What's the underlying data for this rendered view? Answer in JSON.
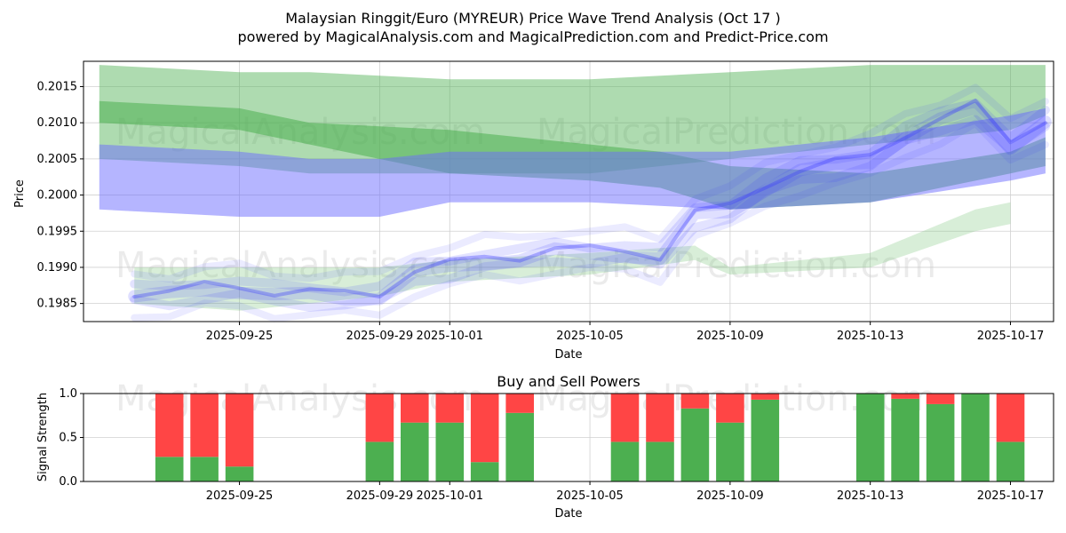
{
  "header": {
    "title": "Malaysian Ringgit/Euro (MYREUR) Price Wave Trend Analysis (Oct 17 )",
    "subtitle": "powered by MagicalAnalysis.com and MagicalPrediction.com and Predict-Price.com"
  },
  "watermarks": [
    "MagicalAnalysis.com",
    "MagicalPrediction.com"
  ],
  "chart_data": [
    {
      "type": "area",
      "name": "price-wave",
      "xlabel": "Date",
      "ylabel": "Price",
      "ylim": [
        0.19825,
        0.20185
      ],
      "xrange": [
        "2025-09-21",
        "2025-10-18"
      ],
      "x_ticks": [
        "2025-09-25",
        "2025-09-29",
        "2025-10-01",
        "2025-10-05",
        "2025-10-09",
        "2025-10-13",
        "2025-10-17"
      ],
      "y_ticks": [
        "0.1985",
        "0.1990",
        "0.1995",
        "0.2000",
        "0.2005",
        "0.2010",
        "0.2015"
      ],
      "grid": true,
      "series": [
        {
          "name": "upper-green-band",
          "color": "#4caf50",
          "x": [
            "2025-09-21",
            "2025-09-25",
            "2025-09-27",
            "2025-10-01",
            "2025-10-05",
            "2025-10-09",
            "2025-10-13",
            "2025-10-17",
            "2025-10-18"
          ],
          "upper": [
            0.2018,
            0.2017,
            0.2017,
            0.2016,
            0.2016,
            0.2017,
            0.2018,
            0.2018,
            0.2018
          ],
          "lower": [
            0.2005,
            0.2004,
            0.2003,
            0.2003,
            0.2003,
            0.2005,
            0.2007,
            0.2009,
            0.2011
          ]
        },
        {
          "name": "lower-green-band",
          "color": "#4caf50",
          "x": [
            "2025-09-21",
            "2025-09-25",
            "2025-09-27",
            "2025-10-01",
            "2025-10-05",
            "2025-10-07",
            "2025-10-09",
            "2025-10-13",
            "2025-10-17",
            "2025-10-18"
          ],
          "upper": [
            0.2013,
            0.2012,
            0.201,
            0.2009,
            0.2007,
            0.2006,
            0.2004,
            0.2003,
            0.2006,
            0.2008
          ],
          "lower": [
            0.201,
            0.2009,
            0.2007,
            0.2003,
            0.2002,
            0.2001,
            0.1998,
            0.1999,
            0.2003,
            0.2004
          ]
        },
        {
          "name": "blue-band",
          "color": "#6b6bff",
          "x": [
            "2025-09-21",
            "2025-09-25",
            "2025-09-27",
            "2025-09-29",
            "2025-10-01",
            "2025-10-05",
            "2025-10-09",
            "2025-10-13",
            "2025-10-17",
            "2025-10-18"
          ],
          "upper": [
            0.2007,
            0.2006,
            0.2005,
            0.2005,
            0.2006,
            0.2006,
            0.2006,
            0.2008,
            0.2011,
            0.2012
          ],
          "lower": [
            0.1998,
            0.1997,
            0.1997,
            0.1997,
            0.1999,
            0.1999,
            0.1998,
            0.1999,
            0.2002,
            0.2003
          ]
        },
        {
          "name": "faint-green-wave",
          "color": "#7ec87e",
          "x": [
            "2025-09-22",
            "2025-09-25",
            "2025-09-29",
            "2025-10-01",
            "2025-10-05",
            "2025-10-08",
            "2025-10-09",
            "2025-10-13",
            "2025-10-16",
            "2025-10-17"
          ],
          "upper": [
            0.199,
            0.199,
            0.199,
            0.1991,
            0.1992,
            0.1993,
            0.199,
            0.1992,
            0.1998,
            0.1999
          ],
          "lower": [
            0.1985,
            0.1984,
            0.1986,
            0.1988,
            0.1989,
            0.1991,
            0.1989,
            0.199,
            0.1995,
            0.1996
          ]
        },
        {
          "name": "price-path",
          "color": "#3838ff",
          "x": [
            "2025-09-22",
            "2025-09-23",
            "2025-09-24",
            "2025-09-25",
            "2025-09-26",
            "2025-09-27",
            "2025-09-28",
            "2025-09-29",
            "2025-09-30",
            "2025-10-01",
            "2025-10-02",
            "2025-10-03",
            "2025-10-04",
            "2025-10-05",
            "2025-10-06",
            "2025-10-07",
            "2025-10-08",
            "2025-10-09",
            "2025-10-10",
            "2025-10-11",
            "2025-10-12",
            "2025-10-13",
            "2025-10-14",
            "2025-10-15",
            "2025-10-16",
            "2025-10-17",
            "2025-10-18"
          ],
          "y": [
            0.1986,
            0.1986,
            0.1987,
            0.1987,
            0.1986,
            0.1986,
            0.1986,
            0.1986,
            0.1989,
            0.199,
            0.1991,
            0.1991,
            0.1992,
            0.1992,
            0.1992,
            0.1991,
            0.1997,
            0.1998,
            0.2001,
            0.2003,
            0.2004,
            0.2005,
            0.2008,
            0.201,
            0.2012,
            0.2007,
            0.201
          ]
        }
      ]
    },
    {
      "type": "bar",
      "name": "buy-sell-powers",
      "title": "Buy and Sell Powers",
      "xlabel": "Date",
      "ylabel": "Signal Strength",
      "ylim": [
        0.0,
        1.0
      ],
      "y_ticks": [
        "0.0",
        "0.5",
        "1.0"
      ],
      "x_ticks": [
        "2025-09-25",
        "2025-09-29",
        "2025-10-01",
        "2025-10-05",
        "2025-10-09",
        "2025-10-13",
        "2025-10-17"
      ],
      "buy_color": "#4caf50",
      "sell_color": "#ff4545",
      "categories": [
        "2025-09-23",
        "2025-09-24",
        "2025-09-25",
        "2025-09-29",
        "2025-09-30",
        "2025-10-01",
        "2025-10-02",
        "2025-10-03",
        "2025-10-06",
        "2025-10-07",
        "2025-10-08",
        "2025-10-09",
        "2025-10-10",
        "2025-10-13",
        "2025-10-14",
        "2025-10-15",
        "2025-10-16",
        "2025-10-17"
      ],
      "series": [
        {
          "name": "Buy",
          "values": [
            0.28,
            0.28,
            0.17,
            0.45,
            0.67,
            0.67,
            0.22,
            0.78,
            0.45,
            0.45,
            0.83,
            0.67,
            0.93,
            1.0,
            0.94,
            0.88,
            1.0,
            0.45
          ]
        },
        {
          "name": "Sell",
          "values": [
            0.72,
            0.72,
            0.83,
            0.55,
            0.33,
            0.33,
            0.78,
            0.22,
            0.55,
            0.55,
            0.17,
            0.33,
            0.07,
            0.0,
            0.06,
            0.12,
            0.0,
            0.55
          ]
        }
      ]
    }
  ]
}
